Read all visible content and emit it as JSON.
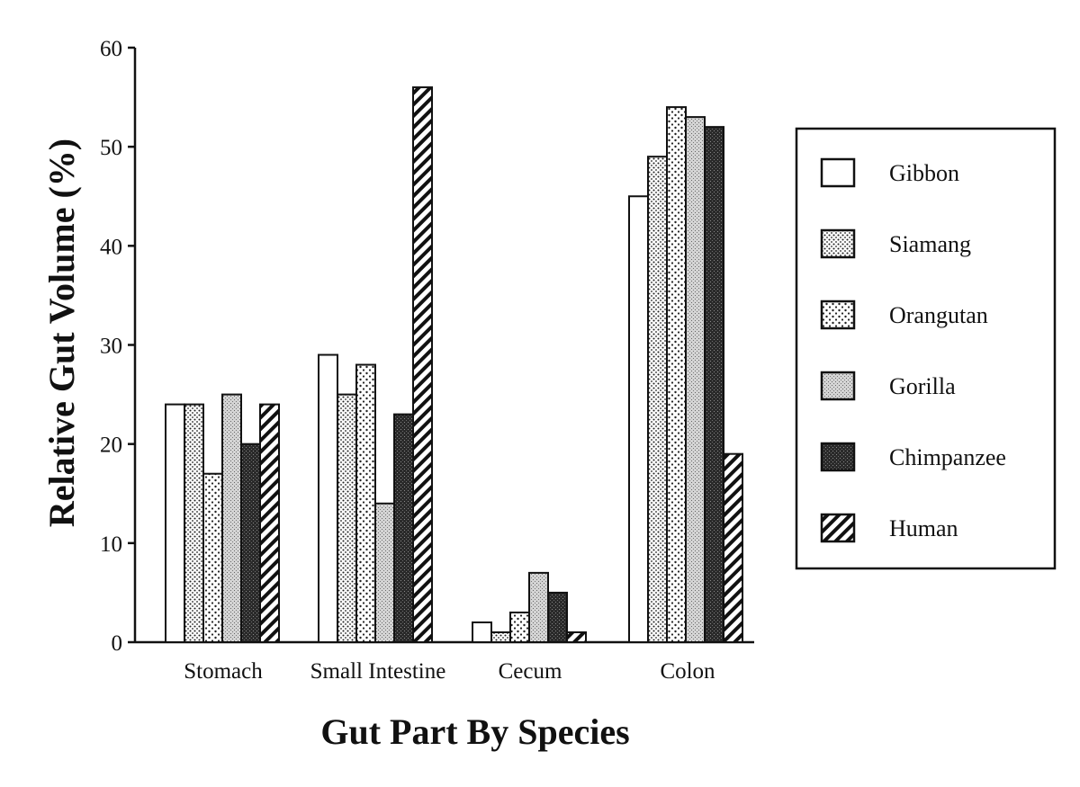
{
  "chart_data": {
    "type": "bar",
    "title": "",
    "xlabel": "Gut Part By Species",
    "ylabel": "Relative Gut Volume (%)",
    "ylim": [
      0,
      60
    ],
    "yticks": [
      0,
      10,
      20,
      30,
      40,
      50,
      60
    ],
    "categories": [
      "Stomach",
      "Small Intestine",
      "Cecum",
      "Colon"
    ],
    "legend_position": "right",
    "series": [
      {
        "name": "Gibbon",
        "pattern": "white",
        "values": [
          24,
          29,
          2,
          45
        ]
      },
      {
        "name": "Siamang",
        "pattern": "fine-dots",
        "values": [
          24,
          25,
          1,
          49
        ]
      },
      {
        "name": "Orangutan",
        "pattern": "sparse-dots",
        "values": [
          17,
          28,
          3,
          54
        ]
      },
      {
        "name": "Gorilla",
        "pattern": "light-stipple",
        "values": [
          25,
          14,
          7,
          53
        ]
      },
      {
        "name": "Chimpanzee",
        "pattern": "dark-stipple",
        "values": [
          20,
          23,
          5,
          52
        ]
      },
      {
        "name": "Human",
        "pattern": "hatch",
        "values": [
          24,
          56,
          1,
          19
        ]
      }
    ]
  }
}
